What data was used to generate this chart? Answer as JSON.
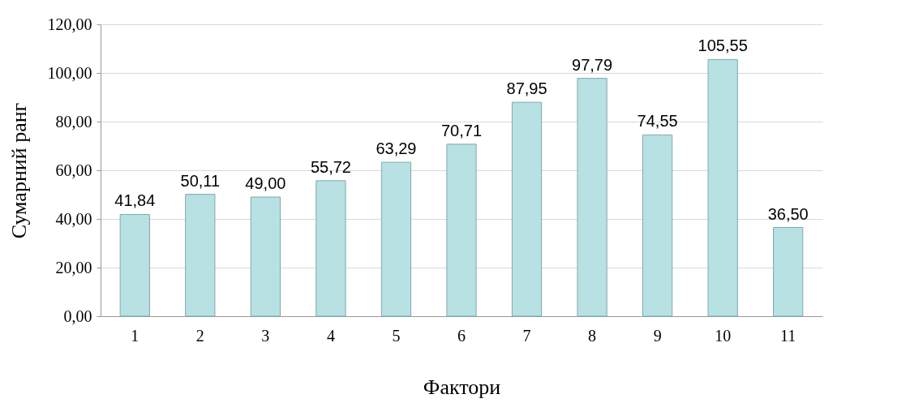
{
  "chart_data": {
    "type": "bar",
    "xlabel": "Фактори",
    "ylabel": "Сумарний  ранг",
    "categories": [
      "1",
      "2",
      "3",
      "4",
      "5",
      "6",
      "7",
      "8",
      "9",
      "10",
      "11"
    ],
    "values": [
      41.84,
      50.11,
      49.0,
      55.72,
      63.29,
      70.71,
      87.95,
      97.79,
      74.55,
      105.55,
      36.5
    ],
    "value_labels": [
      "41,84",
      "50,11",
      "49,00",
      "55,72",
      "63,29",
      "70,71",
      "87,95",
      "97,79",
      "74,55",
      "105,55",
      "36,50"
    ],
    "color": "#b7e1e2",
    "ylim": [
      0,
      120
    ],
    "yticks": [
      {
        "value": 0,
        "label": "0,00"
      },
      {
        "value": 20,
        "label": "20,00"
      },
      {
        "value": 40,
        "label": "40,00"
      },
      {
        "value": 60,
        "label": "60,00"
      },
      {
        "value": 80,
        "label": "80,00"
      },
      {
        "value": 100,
        "label": "100,00"
      },
      {
        "value": 120,
        "label": "120,00"
      }
    ],
    "grid": "y"
  }
}
